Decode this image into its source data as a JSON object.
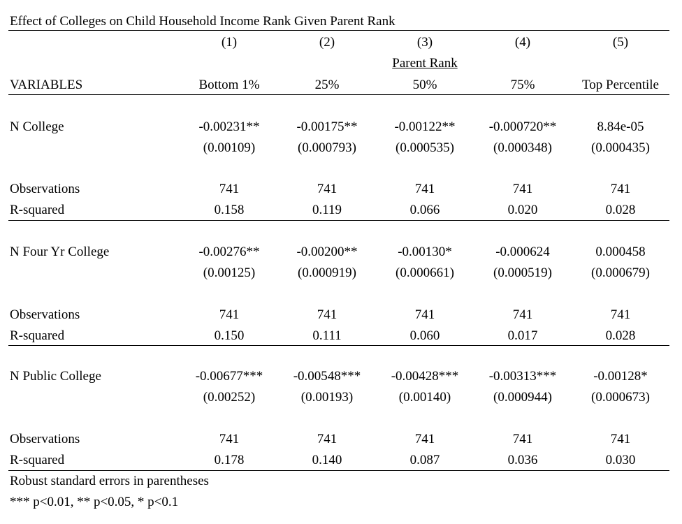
{
  "table": {
    "title": "Effect of Colleges on Child Household Income Rank Given Parent Rank",
    "column_numbers": [
      "(1)",
      "(2)",
      "(3)",
      "(4)",
      "(5)"
    ],
    "group_header": "Parent Rank",
    "variables_label": "VARIABLES",
    "column_labels": [
      "Bottom 1%",
      "25%",
      "50%",
      "75%",
      "Top Percentile"
    ],
    "panels": [
      {
        "variable": "N College",
        "coefficients": [
          "-0.00231**",
          "-0.00175**",
          "-0.00122**",
          "-0.000720**",
          "8.84e-05"
        ],
        "std_errors": [
          "(0.00109)",
          "(0.000793)",
          "(0.000535)",
          "(0.000348)",
          "(0.000435)"
        ],
        "observations_label": "Observations",
        "observations": [
          "741",
          "741",
          "741",
          "741",
          "741"
        ],
        "rsquared_label": "R-squared",
        "rsquared": [
          "0.158",
          "0.119",
          "0.066",
          "0.020",
          "0.028"
        ]
      },
      {
        "variable": "N Four Yr College",
        "coefficients": [
          "-0.00276**",
          "-0.00200**",
          "-0.00130*",
          "-0.000624",
          "0.000458"
        ],
        "std_errors": [
          "(0.00125)",
          "(0.000919)",
          "(0.000661)",
          "(0.000519)",
          "(0.000679)"
        ],
        "observations_label": "Observations",
        "observations": [
          "741",
          "741",
          "741",
          "741",
          "741"
        ],
        "rsquared_label": "R-squared",
        "rsquared": [
          "0.150",
          "0.111",
          "0.060",
          "0.017",
          "0.028"
        ]
      },
      {
        "variable": "N Public College",
        "coefficients": [
          "-0.00677***",
          "-0.00548***",
          "-0.00428***",
          "-0.00313***",
          "-0.00128*"
        ],
        "std_errors": [
          "(0.00252)",
          "(0.00193)",
          "(0.00140)",
          "(0.000944)",
          "(0.000673)"
        ],
        "observations_label": "Observations",
        "observations": [
          "741",
          "741",
          "741",
          "741",
          "741"
        ],
        "rsquared_label": "R-squared",
        "rsquared": [
          "0.178",
          "0.140",
          "0.087",
          "0.036",
          "0.030"
        ]
      }
    ],
    "notes": [
      "Robust standard errors in parentheses",
      "*** p<0.01, ** p<0.05, * p<0.1"
    ]
  }
}
